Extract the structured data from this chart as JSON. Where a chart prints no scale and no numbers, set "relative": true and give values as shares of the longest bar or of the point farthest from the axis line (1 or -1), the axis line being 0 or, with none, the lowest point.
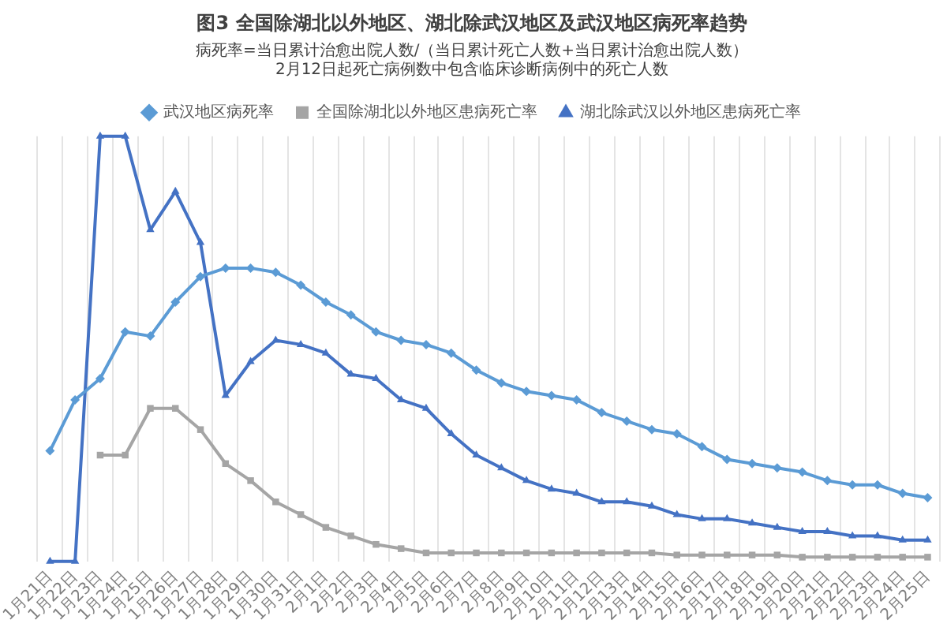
{
  "chart_data": {
    "type": "line",
    "title": "图3 全国除湖北以外地区、湖北除武汉地区及武汉地区病死率趋势",
    "subtitle": "病死率=当日累计治愈出院人数/（当日累计死亡人数+当日累计治愈出院人数）",
    "annotations": [
      "2月12日起死亡病例数中包含临床诊断病例中的死亡人数"
    ],
    "categories": [
      "1月21日",
      "1月22日",
      "1月23日",
      "1月24日",
      "1月25日",
      "1月26日",
      "1月27日",
      "1月28日",
      "1月29日",
      "1月30日",
      "1月31日",
      "2月1日",
      "2月2日",
      "2月3日",
      "2月4日",
      "2月5日",
      "2月6日",
      "2月7日",
      "2月8日",
      "2月9日",
      "2月10日",
      "2月11日",
      "2月12日",
      "2月13日",
      "2月14日",
      "2月15日",
      "2月16日",
      "2月17日",
      "2月18日",
      "2月19日",
      "2月20日",
      "2月21日",
      "2月22日",
      "2月23日",
      "2月24日",
      "2月25日"
    ],
    "series": [
      {
        "name": "武汉地区病死率",
        "color": "#5b9bd5",
        "marker": "diamond",
        "values": [
          0.26,
          0.38,
          0.43,
          0.54,
          0.53,
          0.61,
          0.67,
          0.69,
          0.69,
          0.68,
          0.65,
          0.61,
          0.58,
          0.54,
          0.52,
          0.51,
          0.49,
          0.45,
          0.42,
          0.4,
          0.39,
          0.38,
          0.35,
          0.33,
          0.31,
          0.3,
          0.27,
          0.24,
          0.23,
          0.22,
          0.21,
          0.19,
          0.18,
          0.18,
          0.16,
          0.15
        ]
      },
      {
        "name": "全国除湖北以外地区患病死亡率",
        "color": "#a5a5a5",
        "marker": "square",
        "values": [
          null,
          null,
          0.25,
          0.25,
          0.36,
          0.36,
          0.31,
          0.23,
          0.19,
          0.14,
          0.11,
          0.08,
          0.06,
          0.04,
          0.03,
          0.02,
          0.02,
          0.02,
          0.02,
          0.02,
          0.02,
          0.02,
          0.02,
          0.02,
          0.02,
          0.015,
          0.015,
          0.015,
          0.015,
          0.015,
          0.01,
          0.01,
          0.01,
          0.01,
          0.01,
          0.01
        ]
      },
      {
        "name": "湖北除武汉以外地区患病死亡率",
        "color": "#4472c4",
        "marker": "triangle",
        "values": [
          0,
          0,
          1,
          1,
          0.78,
          0.87,
          0.75,
          0.39,
          0.47,
          0.52,
          0.51,
          0.49,
          0.44,
          0.43,
          0.38,
          0.36,
          0.3,
          0.25,
          0.22,
          0.19,
          0.17,
          0.16,
          0.14,
          0.14,
          0.13,
          0.11,
          0.1,
          0.1,
          0.09,
          0.08,
          0.07,
          0.07,
          0.06,
          0.06,
          0.05,
          0.05
        ]
      }
    ],
    "relative": true,
    "grid": "x",
    "legend": "top"
  }
}
